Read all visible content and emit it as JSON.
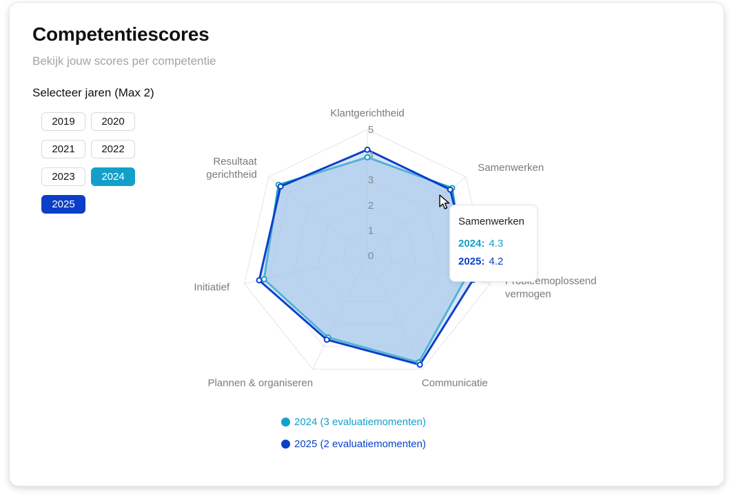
{
  "header": {
    "title": "Competentiescores",
    "subtitle": "Bekijk jouw scores per competentie"
  },
  "year_selector": {
    "label": "Selecteer jaren (Max 2)",
    "years": [
      "2019",
      "2020",
      "2021",
      "2022",
      "2023",
      "2024",
      "2025"
    ],
    "selected": [
      "2024",
      "2025"
    ]
  },
  "colors": {
    "series_2024": "#12a0c9",
    "series_2025": "#0b3fc7",
    "fill": "#a6c8ec",
    "grid": "#e2e4e7"
  },
  "chart_data": {
    "type": "radar",
    "axes": [
      "Klantgerichtheid",
      "Samenwerken",
      "Probleemoplossend vermogen",
      "Communicatie",
      "Plannen & organiseren",
      "Initiatief",
      "Resultaat gerichtheid"
    ],
    "ticks": [
      "0",
      "1",
      "2",
      "3",
      "4",
      "5"
    ],
    "range": [
      0,
      5
    ],
    "series": [
      {
        "name": "2024",
        "values": [
          3.9,
          4.3,
          4.0,
          4.7,
          3.6,
          4.2,
          4.5
        ]
      },
      {
        "name": "2025",
        "values": [
          4.2,
          4.2,
          4.3,
          4.8,
          3.7,
          4.4,
          4.4
        ]
      }
    ],
    "legend": [
      {
        "label": "2024 (3 evaluatiemomenten)"
      },
      {
        "label": "2025 (2 evaluatiemomenten)"
      }
    ]
  },
  "tooltip": {
    "title": "Samenwerken",
    "rows": [
      {
        "label": "2024:",
        "value": "4.3"
      },
      {
        "label": "2025:",
        "value": "4.2"
      }
    ]
  }
}
